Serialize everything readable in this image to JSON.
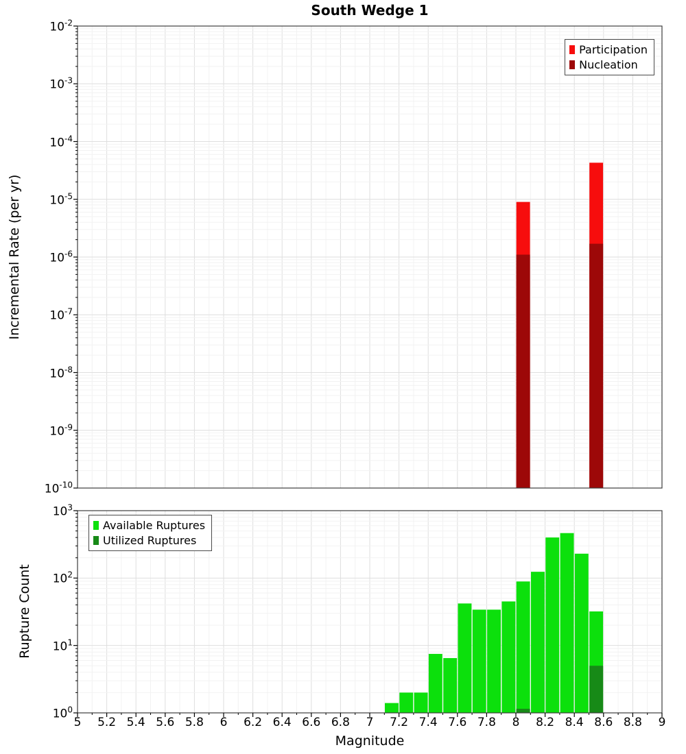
{
  "title": "South Wedge 1",
  "axes": {
    "log_base": "10",
    "x_ticks": [
      "5",
      "5.2",
      "5.4",
      "5.6",
      "5.8",
      "6",
      "6.2",
      "6.4",
      "6.6",
      "6.8",
      "7",
      "7.2",
      "7.4",
      "7.6",
      "7.8",
      "8",
      "8.2",
      "8.4",
      "8.6",
      "8.8",
      "9"
    ],
    "top_y_exponents": [
      "-2",
      "-3",
      "-4",
      "-5",
      "-6",
      "-7",
      "-8",
      "-9",
      "-10"
    ],
    "bottom_y_exponents": [
      "3",
      "2",
      "1",
      "0"
    ]
  },
  "colors": {
    "participation": "#f70d0d",
    "nucleation": "#9d0808",
    "available_ruptures": "#0ce00c",
    "utilized_ruptures": "#178a17",
    "grid_major": "#dedede",
    "grid_minor": "#f2f2f2",
    "axis_frame": "#3c3c3c",
    "tick": "#000000",
    "background": "#ffffff"
  },
  "chart_data": [
    {
      "type": "bar",
      "title": "South Wedge 1",
      "xlabel": "Magnitude",
      "ylabel": "Incremental Rate (per yr)",
      "x_range": [
        5,
        9
      ],
      "y_scale": "log",
      "y_range": [
        1e-10,
        0.01
      ],
      "bin_width": 0.1,
      "grid": true,
      "legend_position": "top-right",
      "series": [
        {
          "name": "Participation",
          "color_key": "participation",
          "x": [
            8.05,
            8.55
          ],
          "values": [
            9e-06,
            4.3e-05
          ]
        },
        {
          "name": "Nucleation",
          "color_key": "nucleation",
          "x": [
            8.05,
            8.55
          ],
          "values": [
            1.1e-06,
            1.7e-06
          ]
        }
      ]
    },
    {
      "type": "bar",
      "title": "",
      "xlabel": "Magnitude",
      "ylabel": "Rupture Count",
      "x_range": [
        5,
        9
      ],
      "y_scale": "log",
      "y_range": [
        1,
        1000
      ],
      "bin_width": 0.1,
      "grid": true,
      "legend_position": "top-left",
      "series": [
        {
          "name": "Available Ruptures",
          "color_key": "available_ruptures",
          "x": [
            7.15,
            7.25,
            7.35,
            7.45,
            7.55,
            7.65,
            7.75,
            7.85,
            7.95,
            8.05,
            8.15,
            8.25,
            8.35,
            8.45,
            8.55
          ],
          "values": [
            1.4,
            2,
            2,
            7.5,
            6.5,
            42,
            34,
            34,
            45,
            89,
            124,
            400,
            465,
            230,
            32
          ]
        },
        {
          "name": "Utilized Ruptures",
          "color_key": "utilized_ruptures",
          "x": [
            8.05,
            8.55
          ],
          "values": [
            1.15,
            5
          ]
        }
      ]
    }
  ]
}
